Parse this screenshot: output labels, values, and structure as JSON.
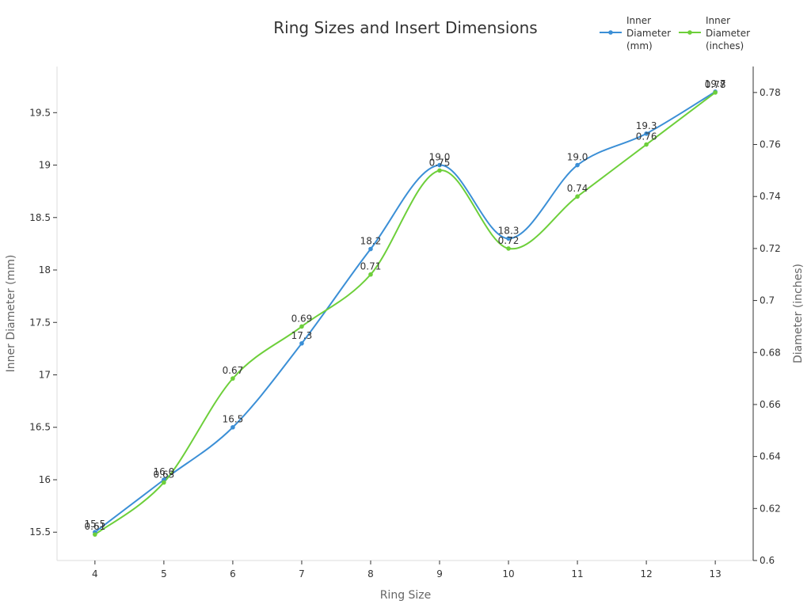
{
  "chart_data": {
    "type": "line",
    "title": "Ring Sizes and Insert Dimensions",
    "xlabel": "Ring Size",
    "ylabel": "Inner Diameter (mm)",
    "y2label": "Diameter (inches)",
    "x": [
      "4",
      "5",
      "6",
      "7",
      "8",
      "9",
      "10",
      "11",
      "12",
      "13"
    ],
    "xlim": [
      3.45,
      13.55
    ],
    "ylim": [
      15.23,
      19.94
    ],
    "y2lim": [
      0.6,
      0.79
    ],
    "y_ticks": [
      "15.5",
      "16",
      "16.5",
      "17",
      "17.5",
      "18",
      "18.5",
      "19",
      "19.5"
    ],
    "y2_ticks": [
      "0.6",
      "0.62",
      "0.64",
      "0.66",
      "0.68",
      "0.7",
      "0.72",
      "0.74",
      "0.76",
      "0.78"
    ],
    "grid": false,
    "legend_position": "top-right",
    "series": [
      {
        "name": "Inner Diameter (mm)",
        "legend_lines": [
          "Inner",
          "Diameter",
          "(mm)"
        ],
        "axis": "left",
        "color": "#3b8fd6",
        "values": [
          15.5,
          16.0,
          16.5,
          17.3,
          18.2,
          19.0,
          18.3,
          19.0,
          19.3,
          19.7
        ],
        "labels": [
          "15.5",
          "16.0",
          "16.5",
          "17.3",
          "18.2",
          "19.0",
          "18.3",
          "19.0",
          "19.3",
          "19.7"
        ]
      },
      {
        "name": "Inner Diameter (inches)",
        "legend_lines": [
          "Inner",
          "Diameter",
          "(inches)"
        ],
        "axis": "right",
        "color": "#6dcf3a",
        "values": [
          0.61,
          0.63,
          0.67,
          0.69,
          0.71,
          0.75,
          0.72,
          0.74,
          0.76,
          0.78
        ],
        "labels": [
          "0.61",
          "0.63",
          "0.67",
          "0.69",
          "0.71",
          "0.75",
          "0.72",
          "0.74",
          "0.76",
          "0.78"
        ]
      }
    ]
  }
}
